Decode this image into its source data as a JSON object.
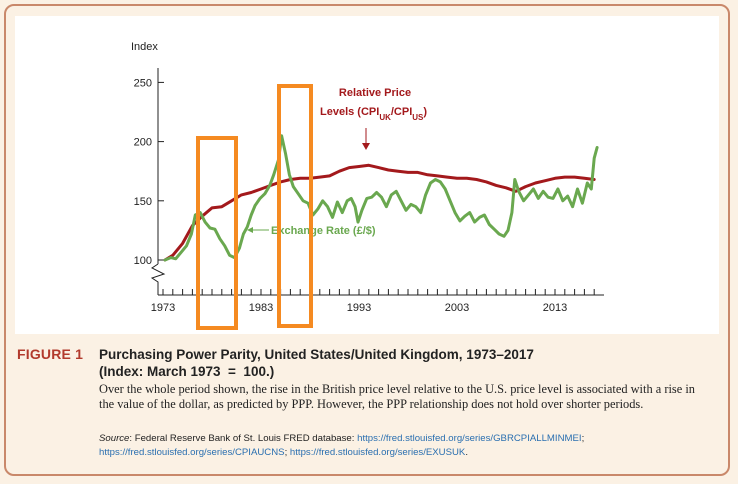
{
  "chart_data": {
    "type": "line",
    "ylabel": "Index",
    "y_ticks": [
      100,
      150,
      200,
      250
    ],
    "x_ticks": [
      "1973",
      "1983",
      "1993",
      "2003",
      "2013"
    ],
    "xlim": [
      1973,
      2017.5
    ],
    "ylim": [
      65,
      250
    ],
    "axis_break": true,
    "series": [
      {
        "name": "Relative Price Levels (CPIUK/CPIUS)",
        "label_main": "Relative Price",
        "label_line2_prefix": "Levels (CPI",
        "label_sub1": "UK",
        "label_mid": "/CPI",
        "label_sub2": "US",
        "label_suffix": ")",
        "color": "#a3191c",
        "x": [
          1973.2,
          1974,
          1975,
          1976,
          1977,
          1978,
          1979,
          1980,
          1981,
          1982,
          1983,
          1984,
          1985,
          1986,
          1987,
          1988,
          1989,
          1990,
          1991,
          1992,
          1993,
          1994,
          1995,
          1996,
          1997,
          1998,
          1999,
          2000,
          2001,
          2002,
          2003,
          2004,
          2005,
          2006,
          2007,
          2008,
          2009,
          2010,
          2011,
          2012,
          2013,
          2014,
          2015,
          2016,
          2017
        ],
        "values": [
          100,
          104,
          114,
          129,
          137,
          144,
          145,
          150,
          155,
          157,
          160,
          163,
          166,
          168,
          169,
          169,
          170,
          171,
          175,
          178,
          179,
          180,
          178,
          176,
          175,
          174,
          174,
          172,
          171,
          170,
          169,
          169,
          168,
          166,
          163,
          161,
          158,
          162,
          165,
          167,
          169,
          170,
          170,
          169,
          168
        ]
      },
      {
        "name": "Exchange Rate (£/$)",
        "color": "#6aa84f",
        "x": [
          1973.2,
          1973.8,
          1974.3,
          1974.8,
          1975.4,
          1975.9,
          1976.3,
          1976.8,
          1977.3,
          1977.8,
          1978.3,
          1978.8,
          1979.3,
          1979.8,
          1980.3,
          1980.8,
          1981.2,
          1981.6,
          1982.0,
          1982.4,
          1982.9,
          1983.4,
          1983.9,
          1984.3,
          1984.8,
          1985.1,
          1985.5,
          1985.9,
          1986.3,
          1986.8,
          1987.3,
          1987.8,
          1988.3,
          1988.8,
          1989.3,
          1989.8,
          1990.3,
          1990.8,
          1991.3,
          1991.8,
          1992.2,
          1992.6,
          1992.9,
          1993.3,
          1993.8,
          1994.3,
          1994.8,
          1995.3,
          1995.8,
          1996.3,
          1996.8,
          1997.3,
          1997.8,
          1998.3,
          1998.8,
          1999.3,
          1999.8,
          2000.3,
          2000.8,
          2001.3,
          2001.8,
          2002.3,
          2002.8,
          2003.3,
          2003.8,
          2004.3,
          2004.8,
          2005.3,
          2005.8,
          2006.3,
          2006.8,
          2007.3,
          2007.8,
          2008.2,
          2008.6,
          2008.9,
          2009.3,
          2009.8,
          2010.3,
          2010.8,
          2011.3,
          2011.8,
          2012.3,
          2012.8,
          2013.3,
          2013.8,
          2014.3,
          2014.8,
          2015.3,
          2015.8,
          2016.3,
          2016.7,
          2017.0,
          2017.3
        ],
        "values": [
          100,
          102,
          101,
          106,
          112,
          122,
          138,
          140,
          132,
          127,
          126,
          118,
          112,
          104,
          102,
          110,
          122,
          128,
          138,
          146,
          152,
          156,
          163,
          172,
          185,
          205,
          190,
          172,
          162,
          156,
          150,
          148,
          138,
          143,
          150,
          145,
          136,
          149,
          140,
          150,
          152,
          145,
          132,
          142,
          152,
          153,
          157,
          153,
          145,
          155,
          158,
          150,
          142,
          147,
          145,
          140,
          155,
          165,
          168,
          166,
          160,
          150,
          140,
          133,
          137,
          140,
          132,
          136,
          138,
          130,
          126,
          122,
          120,
          125,
          140,
          168,
          158,
          150,
          155,
          160,
          152,
          158,
          153,
          152,
          160,
          150,
          154,
          145,
          160,
          148,
          165,
          160,
          186,
          195
        ]
      }
    ],
    "exchange_label": "Exchange Rate (£/$)",
    "highlight_boxes_color": "#f58a21"
  },
  "caption": {
    "figure_label": "FIGURE 1",
    "title_line1": "Purchasing Power Parity, United States/United Kingdom, 1973–2017",
    "title_line2": "(Index: March 1973  =  100.)",
    "description": "Over the whole period shown, the rise in the British price level relative to the U.S. price level is associated with a rise in the value of the dollar, as predicted by PPP. However, the PPP relationship does not hold over shorter periods.",
    "source_prefix": "Source",
    "source_text": ": Federal Reserve Bank of St. Louis FRED database: ",
    "source_links": [
      "https://fred.stlouisfed.org/series/GBRCPIALLMINMEI",
      "https://fred.stlouisfed.org/series/CPIAUCNS",
      "https://fred.stlouisfed.org/series/EXUSUK"
    ]
  }
}
